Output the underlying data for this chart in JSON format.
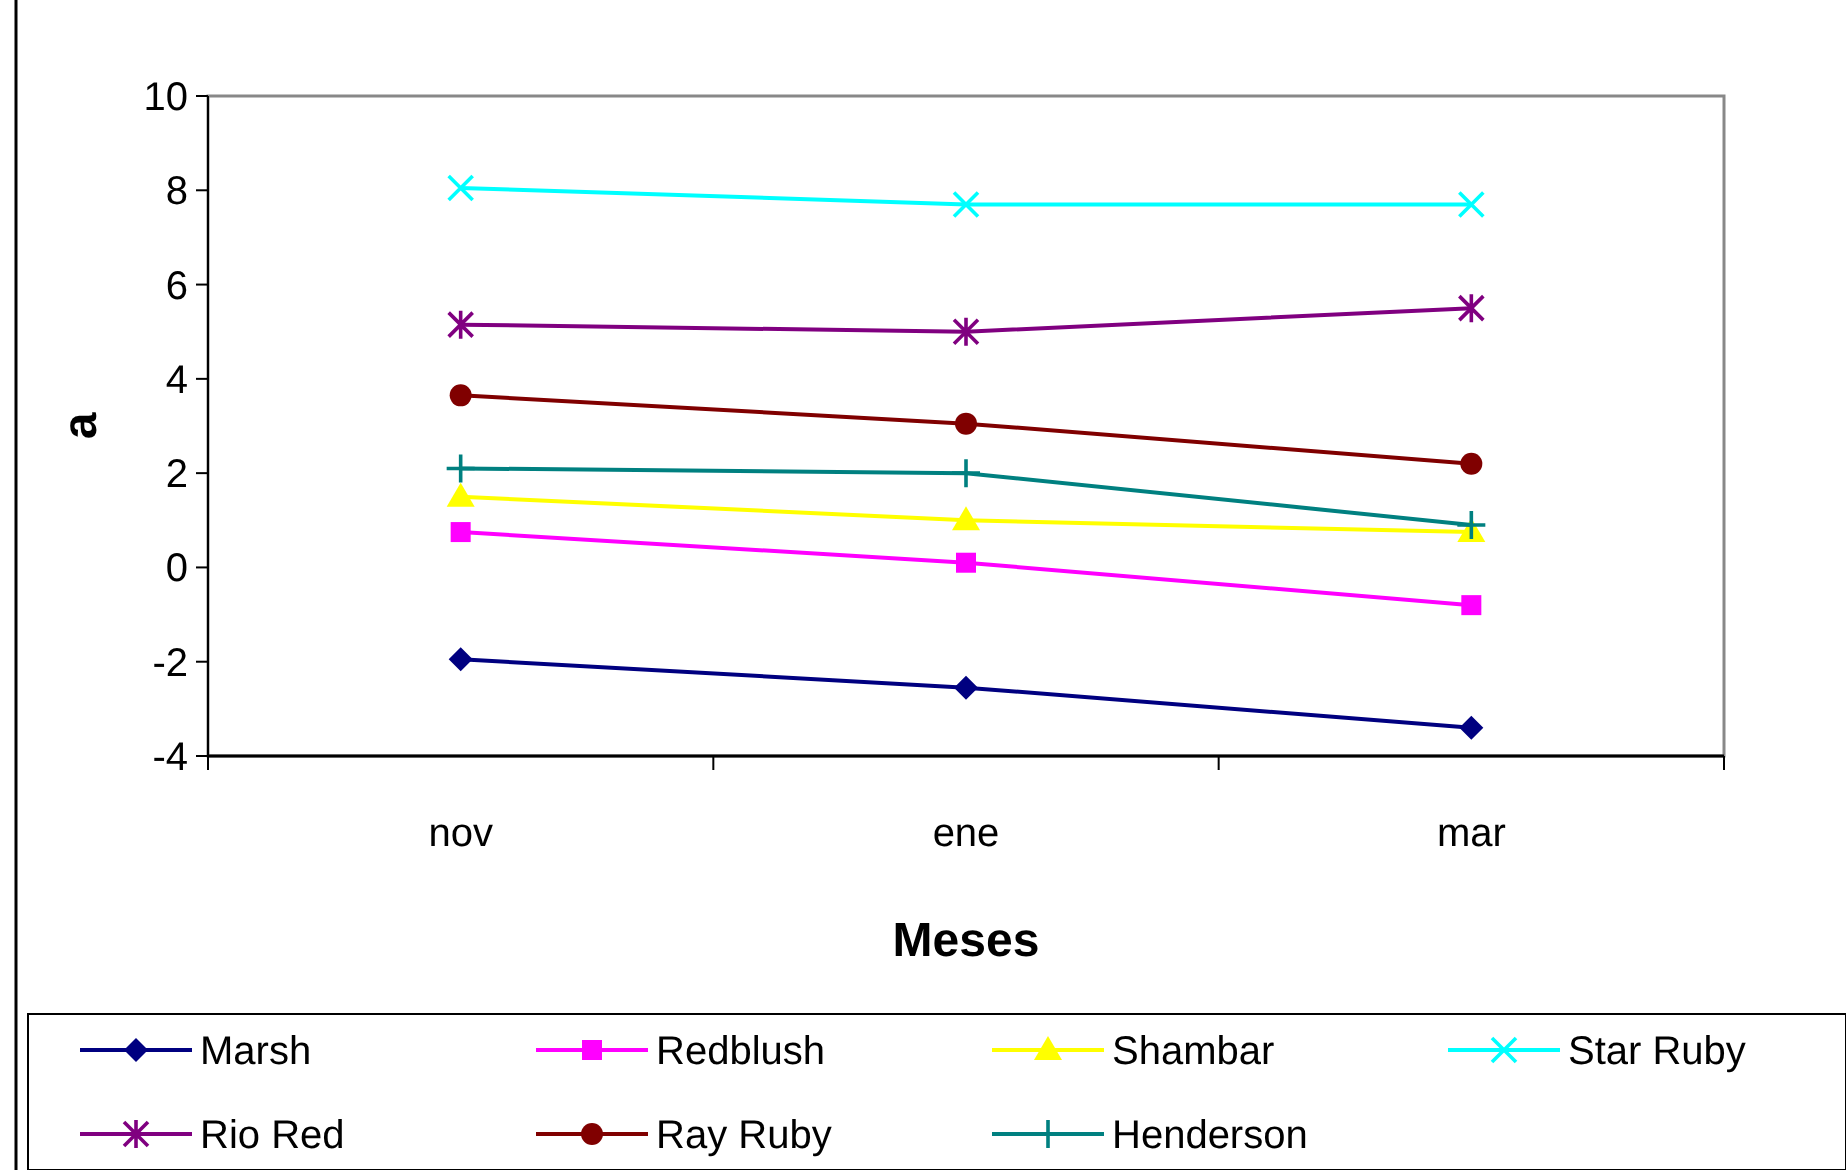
{
  "chart_data": {
    "type": "line",
    "xlabel": "Meses",
    "ylabel": "a",
    "categories": [
      "nov",
      "ene",
      "mar"
    ],
    "ylim": [
      -4,
      10
    ],
    "yticks": [
      -4,
      -2,
      0,
      2,
      4,
      6,
      8,
      10
    ],
    "grid": false,
    "legend": "bottom",
    "series": [
      {
        "name": "Marsh",
        "color": "#000080",
        "marker": "diamond",
        "values": [
          -1.95,
          -2.55,
          -3.4
        ]
      },
      {
        "name": "Redblush",
        "color": "#ff00ff",
        "marker": "square",
        "values": [
          0.75,
          0.1,
          -0.8
        ]
      },
      {
        "name": "Shambar",
        "color": "#ffff00",
        "marker": "triangle",
        "values": [
          1.5,
          1.0,
          0.75
        ]
      },
      {
        "name": "Star Ruby",
        "color": "#00ffff",
        "marker": "cross",
        "values": [
          8.05,
          7.7,
          7.7
        ]
      },
      {
        "name": "Rio Red",
        "color": "#800080",
        "marker": "cross",
        "values": [
          5.15,
          5.0,
          5.5
        ]
      },
      {
        "name": "Ray Ruby",
        "color": "#800000",
        "marker": "circle",
        "values": [
          3.65,
          3.05,
          2.2
        ]
      },
      {
        "name": "Henderson",
        "color": "#008080",
        "marker": "cross",
        "values": [
          2.1,
          2.0,
          0.9
        ]
      }
    ]
  }
}
